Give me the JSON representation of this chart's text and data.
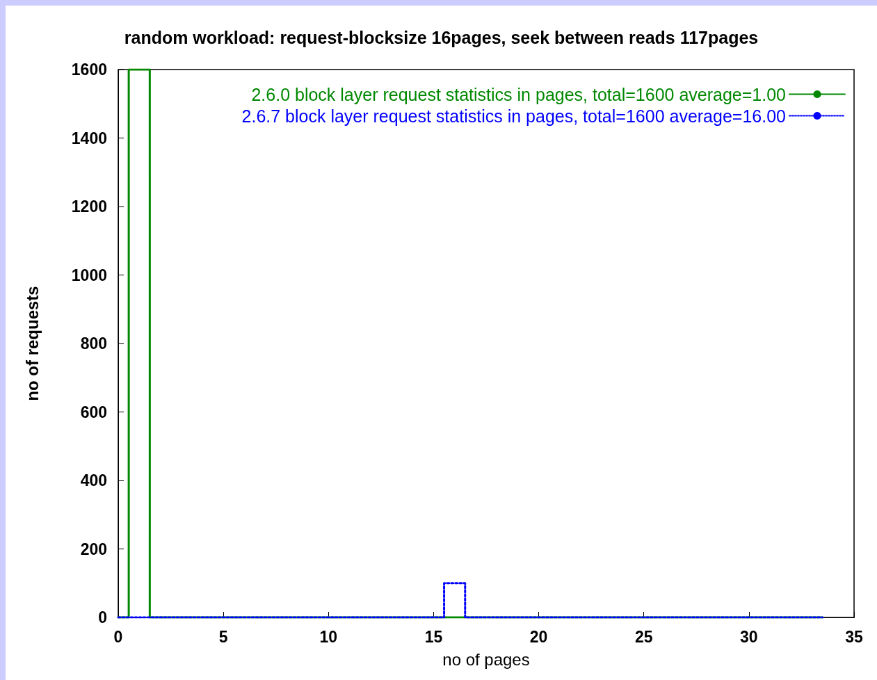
{
  "chart_data": {
    "type": "line",
    "title": "random workload: request-blocksize 16pages, seek between reads 117pages",
    "xlabel": "no of pages",
    "ylabel": "no of requests",
    "xlim": [
      0,
      35
    ],
    "xticks": [
      0,
      5,
      10,
      15,
      20,
      25,
      30,
      35
    ],
    "ylim": [
      0,
      1600
    ],
    "yticks": [
      0,
      200,
      400,
      600,
      800,
      1000,
      1200,
      1400,
      1600
    ],
    "grid": false,
    "legend": "top right",
    "marker": "none",
    "series": [
      {
        "name": "2.6.0 block layer request statistics in pages, total=1600 average=1.00",
        "color": "#008800",
        "line_style": "solid",
        "x": [
          0,
          0.5,
          0.5,
          1.5,
          1.5,
          33.5
        ],
        "values": [
          0,
          0,
          1600,
          1600,
          0,
          0
        ]
      },
      {
        "name": "2.6.7 block layer request statistics in pages, total=1600 average=16.00",
        "color": "#0000ff",
        "line_style": "dotted",
        "x": [
          0,
          15.5,
          15.5,
          16.5,
          16.5,
          33.5
        ],
        "values": [
          0,
          0,
          100,
          100,
          0,
          0
        ]
      }
    ]
  }
}
